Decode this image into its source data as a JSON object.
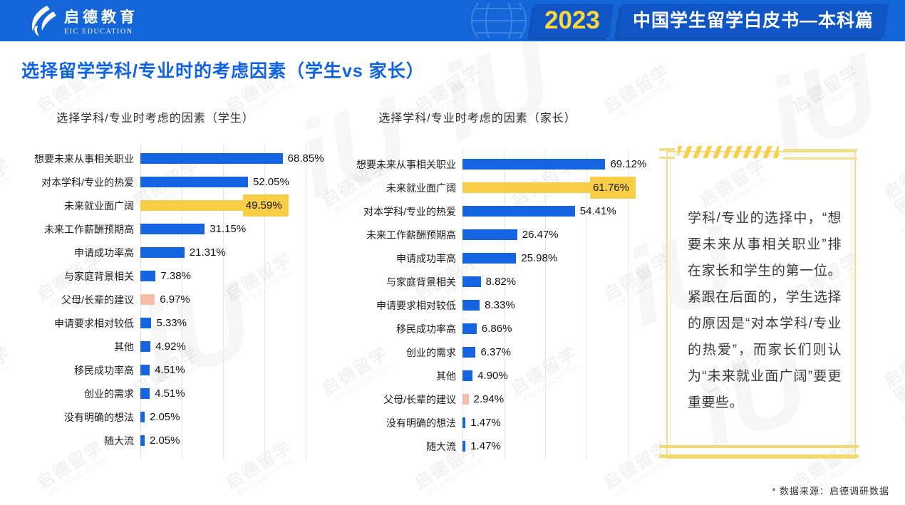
{
  "header": {
    "logo_cn": "启德教育",
    "logo_en": "EIC EDUCATION",
    "year_badge": "2023",
    "report_title": "中国学生留学白皮书—本科篇"
  },
  "page_title": "选择留学学科/专业时的考虑因素（学生vs 家长）",
  "insight_panel": {
    "text": "学科/专业的选择中，“想要未来从事相关职业”排在家长和学生的第一位。紧跟在后面的，学生选择的原因是“对本学科/专业的热爱”，而家长们则认为“未来就业面广阔”要更重要些。"
  },
  "footnote": "* 数据来源：启德调研数据",
  "watermark": {
    "line1": "启德留学",
    "line2": "EIC EDUCATION",
    "glyph": "iU"
  },
  "colors": {
    "header_blue": "#1466D8",
    "badge_blue": "#0F55C6",
    "badge_year_text": "#FFD83C",
    "title_blue": "#1163E6",
    "bar_blue": "#1565E2",
    "bar_yellow": "#F7CE46",
    "bar_pink": "#F6BDA9",
    "panel_border": "#F2DF8E",
    "panel_accent": "#F6CF4D"
  },
  "chart_data": [
    {
      "type": "bar",
      "orientation": "horizontal",
      "title": "选择学科/专业时考虑的因素（学生）",
      "unit": "%",
      "xlim": [
        0,
        80
      ],
      "gridline_step": 20,
      "legend": null,
      "rows": [
        {
          "label": "想要未来从事相关职业",
          "value": 68.85,
          "display": "68.85%",
          "color": "blue",
          "highlight": false
        },
        {
          "label": "对本学科/专业的热爱",
          "value": 52.05,
          "display": "52.05%",
          "color": "blue",
          "highlight": false
        },
        {
          "label": "未来就业面广阔",
          "value": 49.59,
          "display": "49.59%",
          "color": "yellow",
          "highlight": true
        },
        {
          "label": "未来工作薪酬预期高",
          "value": 31.15,
          "display": "31.15%",
          "color": "blue",
          "highlight": false
        },
        {
          "label": "申请成功率高",
          "value": 21.31,
          "display": "21.31%",
          "color": "blue",
          "highlight": false
        },
        {
          "label": "与家庭背景相关",
          "value": 7.38,
          "display": "7.38%",
          "color": "blue",
          "highlight": false
        },
        {
          "label": "父母/长辈的建议",
          "value": 6.97,
          "display": "6.97%",
          "color": "pink",
          "highlight": false
        },
        {
          "label": "申请要求相对较低",
          "value": 5.33,
          "display": "5.33%",
          "color": "blue",
          "highlight": false
        },
        {
          "label": "其他",
          "value": 4.92,
          "display": "4.92%",
          "color": "blue",
          "highlight": false
        },
        {
          "label": "移民成功率高",
          "value": 4.51,
          "display": "4.51%",
          "color": "blue",
          "highlight": false
        },
        {
          "label": "创业的需求",
          "value": 4.51,
          "display": "4.51%",
          "color": "blue",
          "highlight": false
        },
        {
          "label": "没有明确的想法",
          "value": 2.05,
          "display": "2.05%",
          "color": "blue",
          "highlight": false
        },
        {
          "label": "随大流",
          "value": 2.05,
          "display": "2.05%",
          "color": "blue",
          "highlight": false
        }
      ]
    },
    {
      "type": "bar",
      "orientation": "horizontal",
      "title": "选择学科/专业时考虑的因素（家长）",
      "unit": "%",
      "xlim": [
        0,
        80
      ],
      "gridline_step": 20,
      "legend": null,
      "rows": [
        {
          "label": "想要未来从事相关职业",
          "value": 69.12,
          "display": "69.12%",
          "color": "blue",
          "highlight": false
        },
        {
          "label": "未来就业面广阔",
          "value": 61.76,
          "display": "61.76%",
          "color": "yellow",
          "highlight": true
        },
        {
          "label": "对本学科/专业的热爱",
          "value": 54.41,
          "display": "54.41%",
          "color": "blue",
          "highlight": false
        },
        {
          "label": "未来工作薪酬预期高",
          "value": 26.47,
          "display": "26.47%",
          "color": "blue",
          "highlight": false
        },
        {
          "label": "申请成功率高",
          "value": 25.98,
          "display": "25.98%",
          "color": "blue",
          "highlight": false
        },
        {
          "label": "与家庭背景相关",
          "value": 8.82,
          "display": "8.82%",
          "color": "blue",
          "highlight": false
        },
        {
          "label": "申请要求相对较低",
          "value": 8.33,
          "display": "8.33%",
          "color": "blue",
          "highlight": false
        },
        {
          "label": "移民成功率高",
          "value": 6.86,
          "display": "6.86%",
          "color": "blue",
          "highlight": false
        },
        {
          "label": "创业的需求",
          "value": 6.37,
          "display": "6.37%",
          "color": "blue",
          "highlight": false
        },
        {
          "label": "其他",
          "value": 4.9,
          "display": "4.90%",
          "color": "blue",
          "highlight": false
        },
        {
          "label": "父母/长辈的建议",
          "value": 2.94,
          "display": "2.94%",
          "color": "pink",
          "highlight": false
        },
        {
          "label": "没有明确的想法",
          "value": 1.47,
          "display": "1.47%",
          "color": "blue",
          "highlight": false
        },
        {
          "label": "随大流",
          "value": 1.47,
          "display": "1.47%",
          "color": "blue",
          "highlight": false
        }
      ]
    }
  ]
}
